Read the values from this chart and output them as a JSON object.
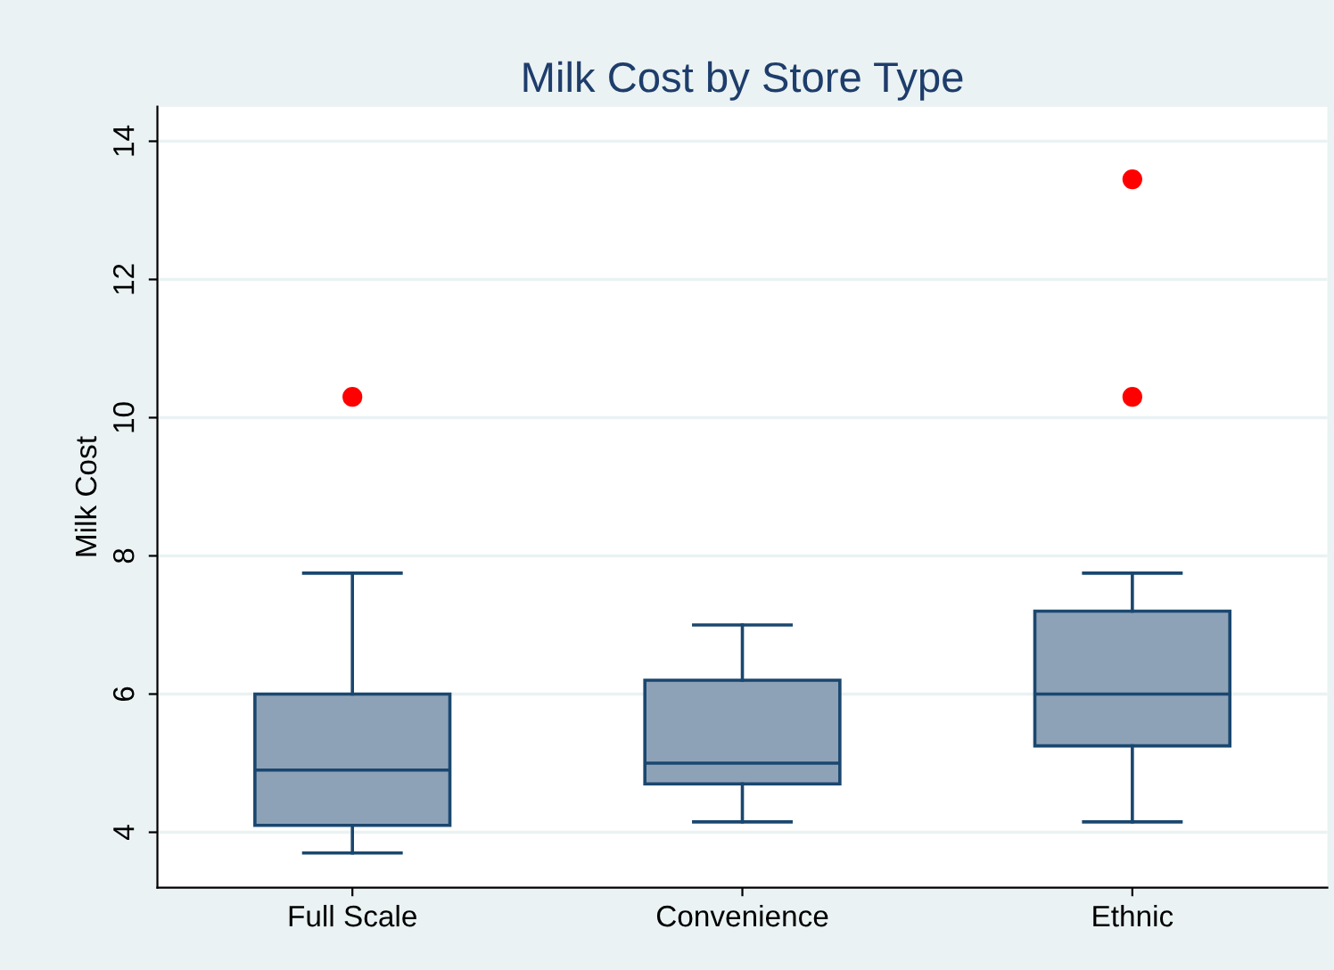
{
  "chart_data": {
    "type": "box",
    "title": "Milk Cost by Store Type",
    "ylabel": "Milk Cost",
    "categories": [
      "Full Scale",
      "Convenience",
      "Ethnic"
    ],
    "boxes": [
      {
        "low": 3.7,
        "q1": 4.1,
        "median": 4.9,
        "q3": 6.0,
        "high": 7.75,
        "outliers": [
          10.3
        ]
      },
      {
        "low": 4.15,
        "q1": 4.7,
        "median": 5.0,
        "q3": 6.2,
        "high": 7.0
      },
      {
        "low": 4.15,
        "q1": 5.25,
        "median": 6.0,
        "q3": 7.2,
        "high": 7.75,
        "outliers": [
          10.3,
          13.45
        ]
      }
    ],
    "color": "#8ea2b7",
    "ylim": [
      3.2,
      14.5
    ],
    "yticks": [
      4,
      6,
      8,
      10,
      12,
      14
    ],
    "grid": "y"
  }
}
